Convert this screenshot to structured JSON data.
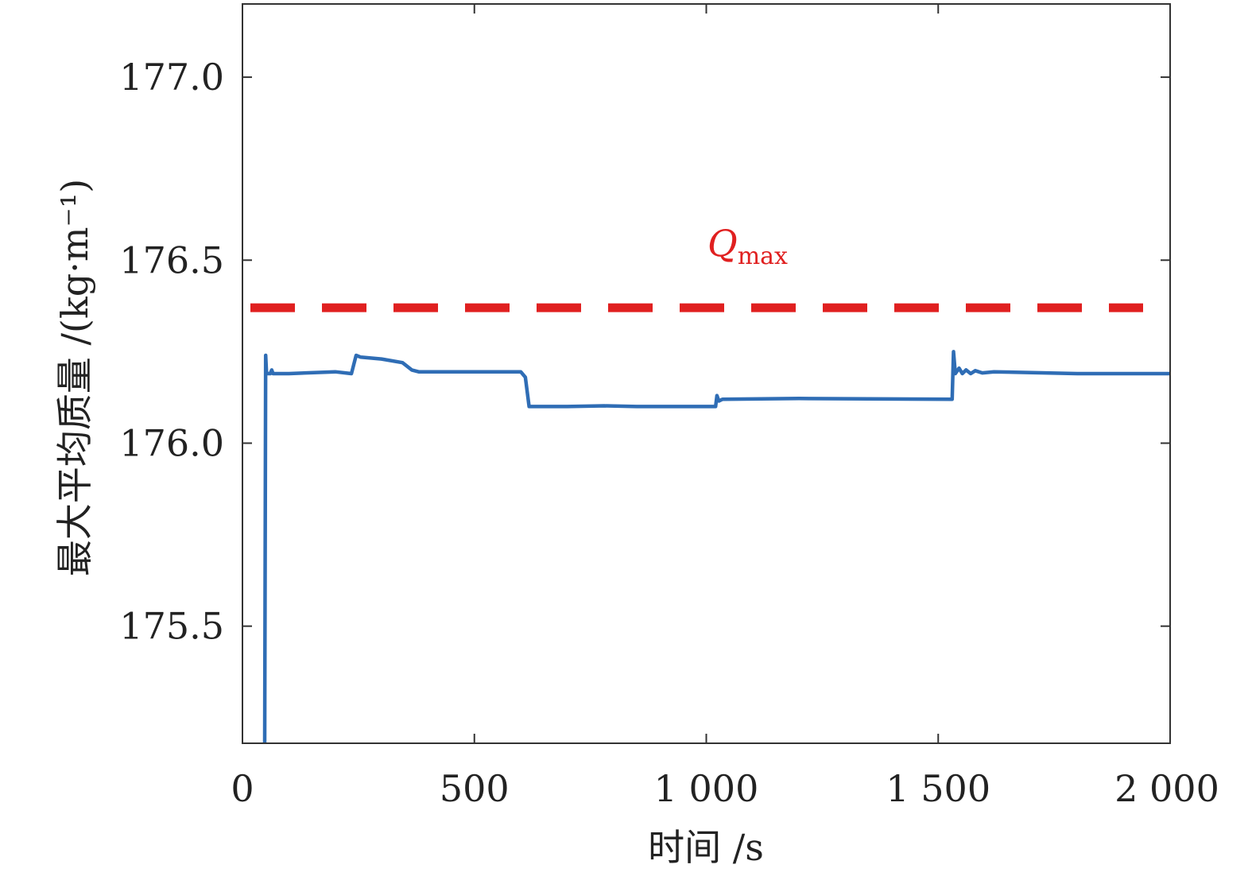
{
  "chart_data": {
    "type": "line",
    "xlabel": "时间 /s",
    "ylabel": "最大平均质量 /(kg·m⁻¹)",
    "xlim": [
      0,
      2000
    ],
    "ylim": [
      175.18,
      177.2
    ],
    "x_ticks": [
      0,
      500,
      1000,
      1500,
      2000
    ],
    "x_tick_labels": [
      "0",
      "500",
      "1 000",
      "1 500",
      "2 000"
    ],
    "y_ticks": [
      175.5,
      176.0,
      176.5,
      177.0
    ],
    "y_tick_labels": [
      "175.5",
      "176.0",
      "176.5",
      "177.0"
    ],
    "grid": false,
    "series": [
      {
        "color": "#2f6db5",
        "points": [
          [
            48,
            175.18
          ],
          [
            50,
            176.24
          ],
          [
            52,
            176.19
          ],
          [
            60,
            176.19
          ],
          [
            63,
            176.2
          ],
          [
            66,
            176.19
          ],
          [
            100,
            176.19
          ],
          [
            200,
            176.195
          ],
          [
            235,
            176.19
          ],
          [
            245,
            176.24
          ],
          [
            255,
            176.235
          ],
          [
            300,
            176.23
          ],
          [
            345,
            176.22
          ],
          [
            365,
            176.2
          ],
          [
            380,
            176.195
          ],
          [
            600,
            176.195
          ],
          [
            610,
            176.18
          ],
          [
            618,
            176.1
          ],
          [
            700,
            176.1
          ],
          [
            780,
            176.102
          ],
          [
            850,
            176.1
          ],
          [
            1020,
            176.1
          ],
          [
            1023,
            176.13
          ],
          [
            1027,
            176.115
          ],
          [
            1035,
            176.12
          ],
          [
            1200,
            176.122
          ],
          [
            1530,
            176.12
          ],
          [
            1533,
            176.25
          ],
          [
            1537,
            176.19
          ],
          [
            1545,
            176.205
          ],
          [
            1552,
            176.19
          ],
          [
            1560,
            176.2
          ],
          [
            1570,
            176.19
          ],
          [
            1580,
            176.198
          ],
          [
            1595,
            176.192
          ],
          [
            1620,
            176.195
          ],
          [
            1800,
            176.19
          ],
          [
            2000,
            176.19
          ]
        ]
      }
    ],
    "reference_line": {
      "y": 176.37,
      "style": "dashed",
      "color": "#e02020",
      "label_main": "Q",
      "label_sub": "max"
    }
  }
}
